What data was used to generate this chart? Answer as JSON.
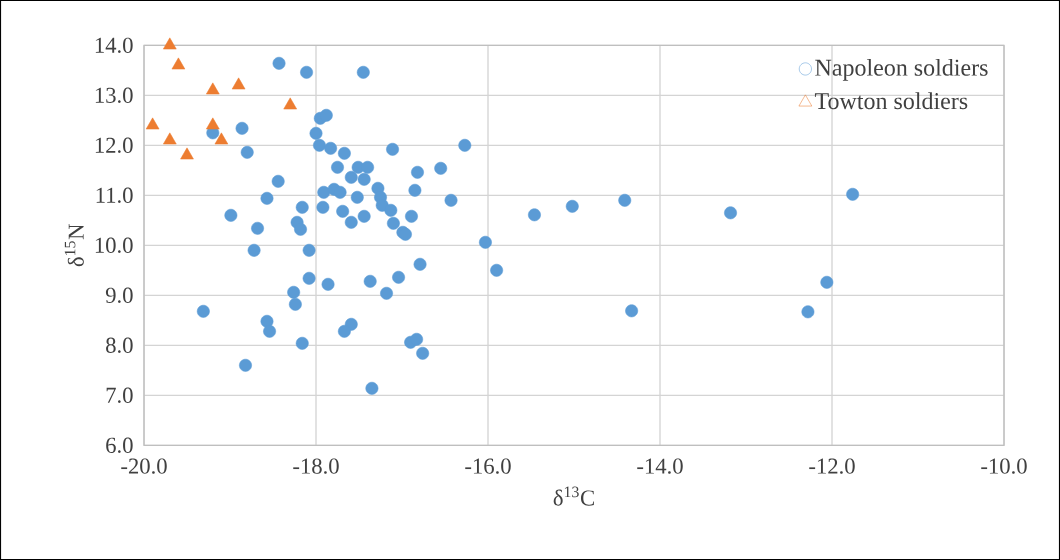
{
  "chart_data": {
    "type": "scatter",
    "xlabel": "δ$^{13}$C",
    "ylabel": "δ$^{15}$N",
    "xlim": [
      -20,
      -10
    ],
    "ylim": [
      6,
      14
    ],
    "xticks": [
      {
        "value": -20,
        "label": "-20.0"
      },
      {
        "value": -18,
        "label": "-18.0"
      },
      {
        "value": -16,
        "label": "-16.0"
      },
      {
        "value": -14,
        "label": "-14.0"
      },
      {
        "value": -12,
        "label": "-12.0"
      },
      {
        "value": -10,
        "label": "-10.0"
      }
    ],
    "yticks": [
      {
        "value": 6,
        "label": "6.0"
      },
      {
        "value": 7,
        "label": "7.0"
      },
      {
        "value": 8,
        "label": "8.0"
      },
      {
        "value": 9,
        "label": "9.0"
      },
      {
        "value": 10,
        "label": "10.0"
      },
      {
        "value": 11,
        "label": "11.0"
      },
      {
        "value": 12,
        "label": "12.0"
      },
      {
        "value": 13,
        "label": "13.0"
      },
      {
        "value": 14,
        "label": "14.0"
      }
    ],
    "grid": true,
    "legend": "top right",
    "series": [
      {
        "name": "Napoleon soldiers",
        "color": "#5b9bd5",
        "marker": "circle",
        "x": [
          -18.43,
          -18.11,
          -17.45,
          -19.2,
          -18.86,
          -18.8,
          -17.95,
          -17.88,
          -18.0,
          -17.96,
          -17.83,
          -17.67,
          -17.75,
          -17.51,
          -17.4,
          -17.59,
          -17.44,
          -17.52,
          -17.91,
          -17.79,
          -17.72,
          -17.92,
          -17.69,
          -17.59,
          -17.44,
          -17.28,
          -17.25,
          -17.23,
          -17.13,
          -17.1,
          -16.99,
          -16.96,
          -16.89,
          -16.85,
          -16.82,
          -16.55,
          -17.11,
          -16.27,
          -16.43,
          -18.44,
          -18.57,
          -18.99,
          -18.68,
          -18.72,
          -18.16,
          -18.22,
          -18.18,
          -18.08,
          -18.26,
          -18.24,
          -18.57,
          -18.54,
          -19.31,
          -18.82,
          -18.16,
          -18.08,
          -17.86,
          -17.37,
          -17.18,
          -17.04,
          -16.79,
          -17.59,
          -17.67,
          -16.9,
          -16.83,
          -16.76,
          -17.35,
          -16.03,
          -15.9,
          -15.46,
          -15.02,
          -14.41,
          -13.18,
          -11.76,
          -12.06,
          -12.28,
          -14.33
        ],
        "values": [
          13.64,
          13.46,
          13.46,
          12.25,
          12.34,
          11.86,
          12.54,
          12.6,
          12.24,
          12.0,
          11.94,
          11.84,
          11.56,
          11.56,
          11.56,
          11.36,
          11.32,
          10.96,
          11.06,
          11.12,
          11.06,
          10.76,
          10.68,
          10.46,
          10.58,
          11.14,
          10.96,
          10.8,
          10.7,
          10.44,
          10.26,
          10.22,
          10.58,
          11.1,
          11.46,
          11.54,
          11.92,
          12.0,
          10.9,
          11.28,
          10.94,
          10.6,
          10.34,
          9.9,
          10.76,
          10.46,
          10.32,
          9.9,
          9.06,
          8.82,
          8.48,
          8.28,
          8.68,
          7.6,
          8.04,
          9.34,
          9.22,
          9.28,
          9.04,
          9.36,
          9.62,
          8.42,
          8.28,
          8.06,
          8.12,
          7.84,
          7.14,
          10.06,
          9.5,
          10.61,
          10.78,
          10.9,
          10.65,
          11.02,
          9.26,
          8.67,
          8.69
        ]
      },
      {
        "name": "Towton soldiers",
        "color": "#ed7d31",
        "marker": "triangle",
        "x": [
          -19.7,
          -19.6,
          -19.2,
          -18.9,
          -18.3,
          -19.9,
          -19.2,
          -19.7,
          -19.1,
          -19.5
        ],
        "values": [
          14.0,
          13.6,
          13.1,
          13.2,
          12.8,
          12.4,
          12.4,
          12.1,
          12.1,
          11.8
        ]
      }
    ]
  }
}
